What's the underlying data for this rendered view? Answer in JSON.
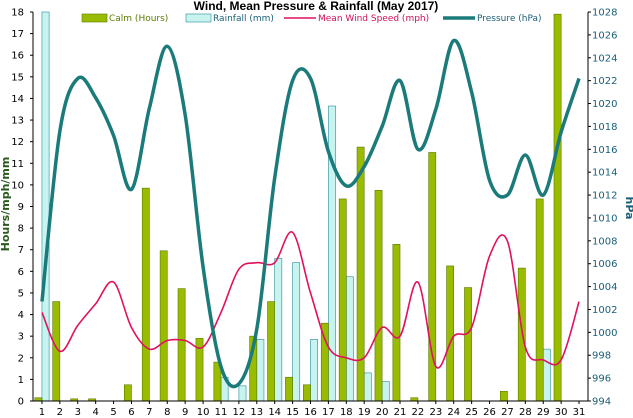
{
  "chart_data": {
    "type": "bar",
    "title": "Wind, Mean Pressure & Rainfall (May 2017)",
    "ylabel": "Hours/mph/mm",
    "ylabel_right": "hPa",
    "ylim": [
      0,
      18
    ],
    "ylim_right": [
      994,
      1028
    ],
    "legend_placement": "top",
    "grid": false,
    "x": [
      1,
      2,
      3,
      4,
      5,
      6,
      7,
      8,
      9,
      10,
      11,
      12,
      13,
      14,
      15,
      16,
      17,
      18,
      19,
      20,
      21,
      22,
      23,
      24,
      25,
      26,
      27,
      28,
      29,
      30,
      31
    ],
    "series": [
      {
        "name": "Calm (Hours)",
        "type": "bar",
        "axis": "left",
        "color": "#99bb00",
        "values": [
          0.15,
          4.6,
          0.1,
          0.1,
          0,
          0.75,
          9.85,
          6.95,
          5.2,
          2.9,
          1.8,
          0,
          3.0,
          4.6,
          1.1,
          0.75,
          3.6,
          9.35,
          11.75,
          9.75,
          7.25,
          0.15,
          11.5,
          6.25,
          5.25,
          0,
          0.45,
          6.15,
          9.35,
          17.9,
          0
        ]
      },
      {
        "name": "Rainfall (mm)",
        "type": "bar",
        "axis": "left",
        "color": "#c8f4f0",
        "values": [
          18,
          0,
          0,
          0,
          0,
          0,
          0,
          0,
          0,
          0,
          1.1,
          0.7,
          2.85,
          6.6,
          6.4,
          2.85,
          13.65,
          5.75,
          1.3,
          0.9,
          0,
          0,
          0,
          0,
          0,
          0,
          0,
          0,
          2.4,
          0,
          0
        ]
      },
      {
        "name": "Mean Wind Speed (mph)",
        "type": "line",
        "axis": "left",
        "color": "#e0115f",
        "values": [
          4.1,
          2.3,
          3.5,
          4.5,
          5.5,
          3.4,
          2.4,
          2.8,
          2.8,
          2.5,
          4.1,
          6.1,
          6.4,
          6.4,
          7.8,
          5.0,
          2.5,
          2.0,
          2.0,
          3.4,
          3.0,
          5.5,
          1.6,
          3.0,
          3.4,
          6.7,
          7.4,
          2.5,
          1.9,
          1.9,
          4.6
        ]
      },
      {
        "name": "Pressure (hPa)",
        "type": "line",
        "axis": "right",
        "color": "#1b7a7a",
        "values": [
          1002.7,
          1017.6,
          1022.2,
          1020.5,
          1017.2,
          1012.5,
          1019.6,
          1025.0,
          1019.0,
          1005.7,
          997.0,
          995.5,
          1000.3,
          1013.5,
          1022.0,
          1022.2,
          1015.8,
          1012.8,
          1014.5,
          1018.0,
          1022.0,
          1016.0,
          1019.5,
          1025.5,
          1021.0,
          1013.3,
          1012.0,
          1015.5,
          1012.0,
          1017.5,
          1022.2
        ]
      }
    ],
    "y_ticks": [
      0,
      1,
      2,
      3,
      4,
      5,
      6,
      7,
      8,
      9,
      10,
      11,
      12,
      13,
      14,
      15,
      16,
      17,
      18
    ],
    "y_ticks_right": [
      994,
      996,
      998,
      1000,
      1002,
      1004,
      1006,
      1008,
      1010,
      1012,
      1014,
      1016,
      1018,
      1020,
      1022,
      1024,
      1026,
      1028
    ]
  }
}
